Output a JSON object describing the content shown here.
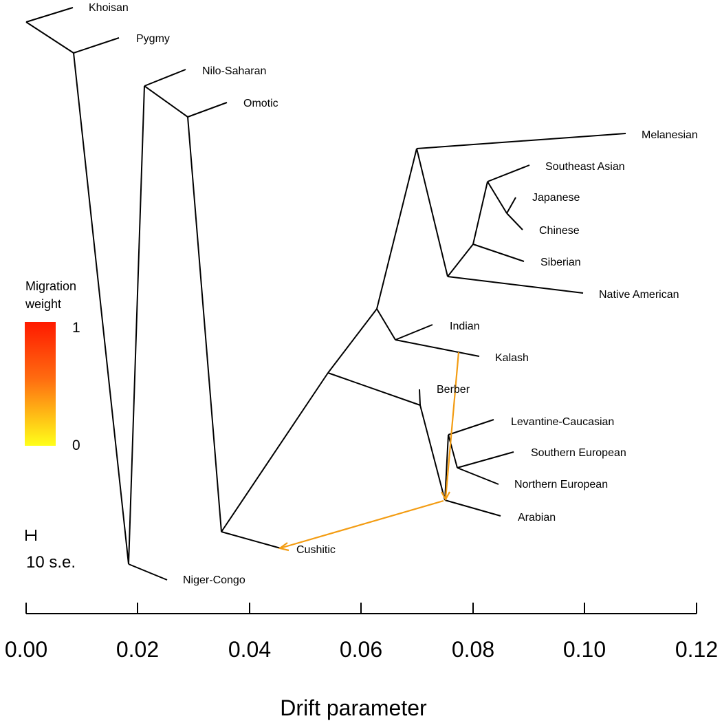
{
  "axis": {
    "title": "Drift parameter",
    "ticks": [
      "0.00",
      "0.02",
      "0.04",
      "0.06",
      "0.08",
      "0.10",
      "0.12"
    ]
  },
  "legend": {
    "title_line1": "Migration",
    "title_line2": "weight",
    "max_label": "1",
    "min_label": "0",
    "color_high": "#ff1a00",
    "color_low": "#ffff1a"
  },
  "scale_bar": {
    "label": "10 s.e."
  },
  "migration_color": "#f39c12",
  "populations": [
    "Khoisan",
    "Pygmy",
    "Nilo-Saharan",
    "Omotic",
    "Melanesian",
    "Southeast Asian",
    "Japanese",
    "Chinese",
    "Siberian",
    "Native American",
    "Indian",
    "Kalash",
    "Berber",
    "Levantine-Caucasian",
    "Southern European",
    "Northern European",
    "Arabian",
    "Cushitic",
    "Niger-Congo"
  ],
  "migrations": [
    {
      "from": "Kalash",
      "to": "Arabian/Levantine-European ancestor"
    },
    {
      "from": "Arabian/Levantine-European ancestor",
      "to": "Cushitic"
    }
  ]
}
